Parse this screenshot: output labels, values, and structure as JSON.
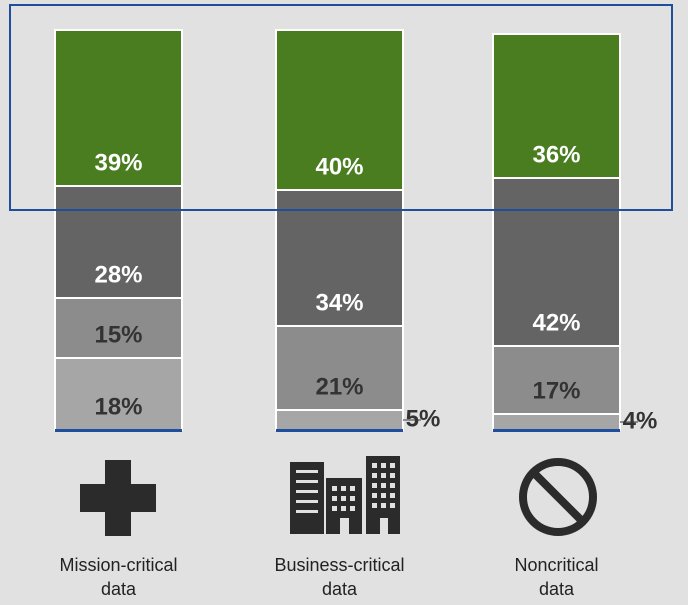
{
  "chart_data": {
    "type": "stacked_bar",
    "categories": [
      "Mission-critical\ndata",
      "Business-critical\ndata",
      "Noncritical\ndata"
    ],
    "ylim": [
      0,
      100
    ],
    "series": [
      {
        "color": "#a6a6a6",
        "label_color": "#333333",
        "values": [
          18,
          5,
          4
        ],
        "value_labels": [
          "18%",
          "5%",
          "4%"
        ]
      },
      {
        "color": "#8c8c8c",
        "label_color": "#333333",
        "values": [
          15,
          21,
          17
        ],
        "value_labels": [
          "15%",
          "21%",
          "17%"
        ]
      },
      {
        "color": "#646464",
        "label_color": "#ffffff",
        "values": [
          28,
          34,
          42
        ],
        "value_labels": [
          "28%",
          "34%",
          "42%"
        ]
      },
      {
        "color": "#4a7d1f",
        "label_color": "#ffffff",
        "values": [
          39,
          40,
          36
        ],
        "value_labels": [
          "39%",
          "40%",
          "36%"
        ]
      }
    ]
  }
}
